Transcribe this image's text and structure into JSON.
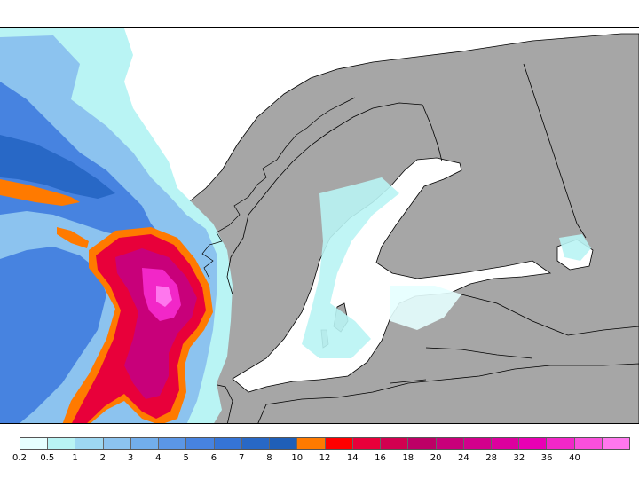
{
  "map": {
    "colors": {
      "land": "#a6a6a6",
      "sea": "#ffffff",
      "border": "#000000"
    }
  },
  "legend": {
    "bins": [
      {
        "color": "#e6ffff",
        "label": "0.2"
      },
      {
        "color": "#b9f4f4",
        "label": "0.5"
      },
      {
        "color": "#9ed8f2",
        "label": "1"
      },
      {
        "color": "#8cc3ef",
        "label": "2"
      },
      {
        "color": "#72aeec",
        "label": "3"
      },
      {
        "color": "#5b96e6",
        "label": "4"
      },
      {
        "color": "#4783e0",
        "label": "5"
      },
      {
        "color": "#3574d6",
        "label": "6"
      },
      {
        "color": "#2868c6",
        "label": "7"
      },
      {
        "color": "#1f5fb8",
        "label": "8"
      },
      {
        "color": "#ff7a00",
        "label": "10"
      },
      {
        "color": "#ff0000",
        "label": "12"
      },
      {
        "color": "#e8003a",
        "label": "14"
      },
      {
        "color": "#d20050",
        "label": "16"
      },
      {
        "color": "#bd0066",
        "label": "18"
      },
      {
        "color": "#c8007a",
        "label": "20"
      },
      {
        "color": "#d2008c",
        "label": "24"
      },
      {
        "color": "#dc009e",
        "label": "28"
      },
      {
        "color": "#e800b4",
        "label": "32"
      },
      {
        "color": "#f227c8",
        "label": "36"
      },
      {
        "color": "#fa4fdc",
        "label": "40"
      },
      {
        "color": "#ff77ee",
        "label": ""
      }
    ]
  }
}
